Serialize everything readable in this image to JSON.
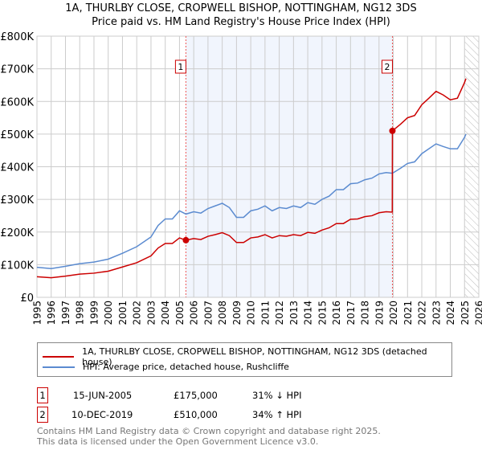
{
  "chart_data": {
    "type": "line",
    "title": "1A, THURLBY CLOSE, CROPWELL BISHOP, NOTTINGHAM, NG12 3DS",
    "subtitle": "Price paid vs. HM Land Registry's House Price Index (HPI)",
    "xlim": [
      1995,
      2026
    ],
    "ylim": [
      0,
      800000
    ],
    "yticks": [
      0,
      100000,
      200000,
      300000,
      400000,
      500000,
      600000,
      700000,
      800000
    ],
    "ytick_labels": [
      "£0",
      "£100K",
      "£200K",
      "£300K",
      "£400K",
      "£500K",
      "£600K",
      "£700K",
      "£800K"
    ],
    "xticks": [
      "1995",
      "1996",
      "1997",
      "1998",
      "1999",
      "2000",
      "2001",
      "2002",
      "2003",
      "2004",
      "2005",
      "2006",
      "2007",
      "2008",
      "2009",
      "2010",
      "2011",
      "2012",
      "2013",
      "2014",
      "2015",
      "2016",
      "2017",
      "2018",
      "2019",
      "2020",
      "2021",
      "2022",
      "2023",
      "2024",
      "2025",
      "2026"
    ],
    "grid": true,
    "shaded_range": [
      2005.45,
      2019.94
    ],
    "forecast_hatch_from": 2025.0,
    "series": [
      {
        "name": "1A, THURLBY CLOSE, CROPWELL BISHOP, NOTTINGHAM, NG12 3DS (detached house)",
        "color": "#cc0000",
        "x": [
          1995,
          1996,
          1997,
          1998,
          1999,
          2000,
          2001,
          2002,
          2003,
          2003.5,
          2004,
          2004.5,
          2005,
          2005.45,
          2006,
          2006.5,
          2007,
          2007.5,
          2008,
          2008.5,
          2009,
          2009.5,
          2010,
          2010.5,
          2011,
          2011.5,
          2012,
          2012.5,
          2013,
          2013.5,
          2014,
          2014.5,
          2015,
          2015.5,
          2016,
          2016.5,
          2017,
          2017.5,
          2018,
          2018.5,
          2019,
          2019.5,
          2019.93,
          2019.94,
          2020.5,
          2021,
          2021.5,
          2022,
          2022.5,
          2023,
          2023.5,
          2024,
          2024.5,
          2025,
          2025.1
        ],
        "y": [
          63000,
          60000,
          65000,
          71000,
          74000,
          80000,
          93000,
          106000,
          127000,
          151000,
          165000,
          165000,
          182000,
          175000,
          180000,
          177000,
          187000,
          192000,
          198000,
          189000,
          168000,
          168000,
          182000,
          185000,
          192000,
          182000,
          189000,
          187000,
          192000,
          189000,
          199000,
          196000,
          206000,
          213000,
          226000,
          226000,
          239000,
          240000,
          247000,
          250000,
          259000,
          262000,
          261000,
          510000,
          530000,
          550000,
          557000,
          590000,
          610000,
          631000,
          620000,
          605000,
          610000,
          658000,
          670000
        ]
      },
      {
        "name": "HPI: Average price, detached house, Rushcliffe",
        "color": "#5b8bd0",
        "x": [
          1995,
          1996,
          1997,
          1998,
          1999,
          2000,
          2001,
          2002,
          2003,
          2003.5,
          2004,
          2004.5,
          2005,
          2005.45,
          2006,
          2006.5,
          2007,
          2007.5,
          2008,
          2008.5,
          2009,
          2009.5,
          2010,
          2010.5,
          2011,
          2011.5,
          2012,
          2012.5,
          2013,
          2013.5,
          2014,
          2014.5,
          2015,
          2015.5,
          2016,
          2016.5,
          2017,
          2017.5,
          2018,
          2018.5,
          2019,
          2019.5,
          2019.94,
          2020.5,
          2021,
          2021.5,
          2022,
          2022.5,
          2023,
          2023.5,
          2024,
          2024.5,
          2025,
          2025.1
        ],
        "y": [
          92000,
          88000,
          95000,
          103000,
          108000,
          117000,
          135000,
          155000,
          185000,
          220000,
          240000,
          240000,
          265000,
          255000,
          262000,
          258000,
          272000,
          280000,
          288000,
          275000,
          245000,
          245000,
          265000,
          270000,
          280000,
          265000,
          275000,
          272000,
          280000,
          275000,
          290000,
          285000,
          300000,
          310000,
          330000,
          330000,
          348000,
          350000,
          360000,
          365000,
          378000,
          382000,
          380000,
          395000,
          410000,
          415000,
          440000,
          455000,
          470000,
          462000,
          455000,
          455000,
          490000,
          500000
        ]
      }
    ],
    "sales": [
      {
        "label": "1",
        "x": 2005.45,
        "y": 175000,
        "date": "15-JUN-2005",
        "price": "£175,000",
        "hpi": "31% ↓ HPI"
      },
      {
        "label": "2",
        "x": 2019.94,
        "y": 510000,
        "date": "10-DEC-2019",
        "price": "£510,000",
        "hpi": "34% ↑ HPI"
      }
    ]
  },
  "legend": {
    "red": "1A, THURLBY CLOSE, CROPWELL BISHOP, NOTTINGHAM, NG12 3DS (detached house)",
    "blue": "HPI: Average price, detached house, Rushcliffe"
  },
  "footer": {
    "line1": "Contains HM Land Registry data © Crown copyright and database right 2025.",
    "line2": "This data is licensed under the Open Government Licence v3.0."
  }
}
